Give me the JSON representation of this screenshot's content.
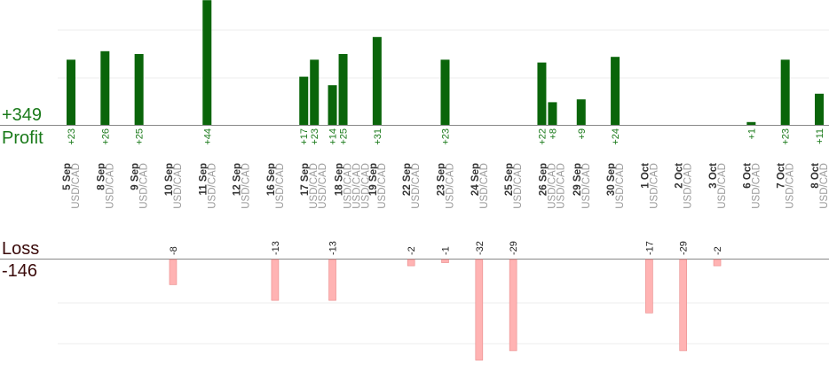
{
  "summary": {
    "profit_total": "+349",
    "profit_label": "Profit",
    "loss_label": "Loss",
    "loss_total": "-146"
  },
  "colors": {
    "profit_bar": "#0a650a",
    "profit_text": "#1a7a1a",
    "loss_bar": "#ffb3b3",
    "loss_bar_stroke": "#e98a8a",
    "loss_text": "#3a0a0a",
    "date_text": "#333333",
    "pair_text": "#9a9a9a",
    "grid": "#eeeeee",
    "axis": "#888888"
  },
  "chart_data": {
    "type": "bar",
    "categories": [
      {
        "date": "5 Sep",
        "pair": "USD/CAD"
      },
      {
        "date": "8 Sep",
        "pair": "USD/CAD"
      },
      {
        "date": "9 Sep",
        "pair": "USD/CAD"
      },
      {
        "date": "10 Sep",
        "pair": "USD/CAD"
      },
      {
        "date": "11 Sep",
        "pair": "USD/CAD"
      },
      {
        "date": "12 Sep",
        "pair": "USD/CAD"
      },
      {
        "date": "16 Sep",
        "pair": "USD/CAD"
      },
      {
        "date": "17 Sep",
        "pair": "USD/CAD",
        "count": 2
      },
      {
        "date": "18 Sep",
        "pair": "USD/CAD",
        "count": 3
      },
      {
        "date": "19 Sep",
        "pair": "USD/CAD"
      },
      {
        "date": "22 Sep",
        "pair": "USD/CAD"
      },
      {
        "date": "23 Sep",
        "pair": "USD/CAD"
      },
      {
        "date": "24 Sep",
        "pair": "USD/CAD"
      },
      {
        "date": "25 Sep",
        "pair": "USD/CAD"
      },
      {
        "date": "26 Sep",
        "pair": "USD/CAD",
        "count": 2
      },
      {
        "date": "29 Sep",
        "pair": "USD/CAD"
      },
      {
        "date": "30 Sep",
        "pair": "USD/CAD"
      },
      {
        "date": "1 Oct",
        "pair": "USD/CAD"
      },
      {
        "date": "2 Oct",
        "pair": "USD/CAD"
      },
      {
        "date": "3 Oct",
        "pair": "USD/CAD"
      },
      {
        "date": "6 Oct",
        "pair": "USD/CAD"
      },
      {
        "date": "7 Oct",
        "pair": "USD/CAD"
      },
      {
        "date": "8 Oct",
        "pair": "USD/CAD"
      }
    ],
    "profits": [
      {
        "date": "5 Sep",
        "value": 23,
        "label": "+23"
      },
      {
        "date": "8 Sep",
        "value": 26,
        "label": "+26"
      },
      {
        "date": "9 Sep",
        "value": 25,
        "label": "+25"
      },
      {
        "date": "11 Sep",
        "value": 44,
        "label": "+44"
      },
      {
        "date": "17 Sep",
        "value": 17,
        "label": "+17"
      },
      {
        "date": "17 Sep",
        "value": 23,
        "label": "+23"
      },
      {
        "date": "18 Sep",
        "value": 14,
        "label": "+14"
      },
      {
        "date": "18 Sep",
        "value": 25,
        "label": "+25"
      },
      {
        "date": "19 Sep",
        "value": 31,
        "label": "+31"
      },
      {
        "date": "23 Sep",
        "value": 23,
        "label": "+23"
      },
      {
        "date": "26 Sep",
        "value": 22,
        "label": "+22"
      },
      {
        "date": "26 Sep",
        "value": 8,
        "label": "+8"
      },
      {
        "date": "29 Sep",
        "value": 9,
        "label": "+9"
      },
      {
        "date": "30 Sep",
        "value": 24,
        "label": "+24"
      },
      {
        "date": "6 Oct",
        "value": 1,
        "label": "+1"
      },
      {
        "date": "7 Oct",
        "value": 23,
        "label": "+23"
      },
      {
        "date": "8 Oct",
        "value": 11,
        "label": "+11"
      }
    ],
    "losses": [
      {
        "date": "10 Sep",
        "value": -8,
        "label": "-8"
      },
      {
        "date": "16 Sep",
        "value": -13,
        "label": "-13"
      },
      {
        "date": "18 Sep",
        "value": -13,
        "label": "-13"
      },
      {
        "date": "22 Sep",
        "value": -2,
        "label": "-2"
      },
      {
        "date": "23 Sep",
        "value": -1,
        "label": "-1"
      },
      {
        "date": "24 Sep",
        "value": -32,
        "label": "-32"
      },
      {
        "date": "25 Sep",
        "value": -29,
        "label": "-29"
      },
      {
        "date": "1 Oct",
        "value": -17,
        "label": "-17"
      },
      {
        "date": "2 Oct",
        "value": -29,
        "label": "-29"
      },
      {
        "date": "3 Oct",
        "value": -2,
        "label": "-2"
      }
    ],
    "grid": true
  }
}
